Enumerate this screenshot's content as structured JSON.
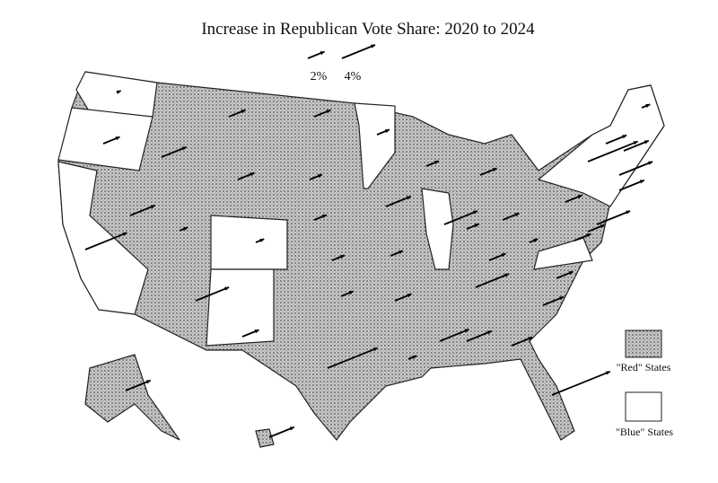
{
  "title": "Increase in Republican Vote Share: 2020 to 2024",
  "scale": [
    {
      "value": 2,
      "label": "2%"
    },
    {
      "value": 4,
      "label": "4%"
    }
  ],
  "legend": [
    "\"Red\" States",
    "\"Blue\" States"
  ],
  "shifts": [
    0.5,
    2,
    5,
    3,
    3,
    2,
    2,
    1,
    1,
    4,
    2,
    2,
    1.5,
    1.5,
    1.5,
    1.5,
    6,
    1.5,
    3,
    1.5,
    2,
    1,
    1.5,
    4,
    2,
    1.5,
    2,
    2,
    4,
    3.5,
    3,
    2.5,
    7,
    2.5,
    2,
    2,
    1,
    2,
    6,
    4,
    2,
    3,
    4,
    2.5,
    3,
    1,
    3,
    3
  ]
}
